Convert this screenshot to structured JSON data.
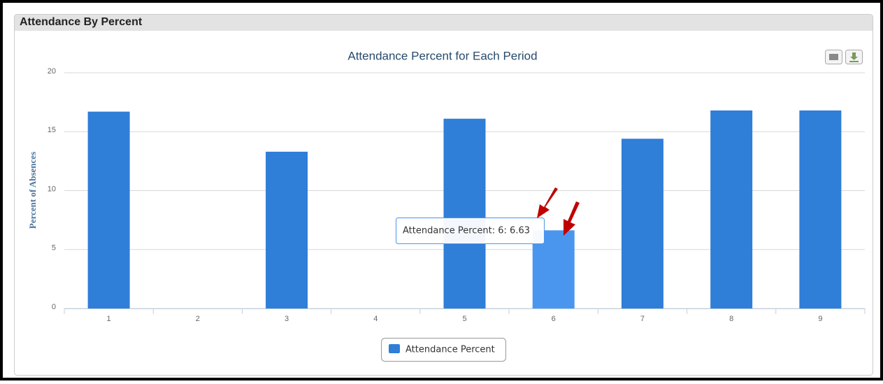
{
  "panel": {
    "title": "Attendance By Percent"
  },
  "chart_data": {
    "type": "bar",
    "title": "Attendance Percent for Each Period",
    "y_label": "Percent of Absences",
    "categories": [
      "1",
      "2",
      "3",
      "4",
      "5",
      "6",
      "7",
      "8",
      "9"
    ],
    "series": [
      {
        "name": "Attendance Percent",
        "color": "#2f7ed8",
        "values": [
          16.7,
          0,
          13.3,
          0,
          16.1,
          6.63,
          14.4,
          16.8,
          16.8
        ]
      }
    ],
    "highlighted_category": "6",
    "highlight_color": "#4a96ee",
    "tooltip": "Attendance Percent: 6: 6.63",
    "ylim": [
      0,
      20
    ],
    "yticks": [
      0,
      5,
      10,
      15,
      20
    ],
    "grid": true,
    "legend": "bottom"
  }
}
